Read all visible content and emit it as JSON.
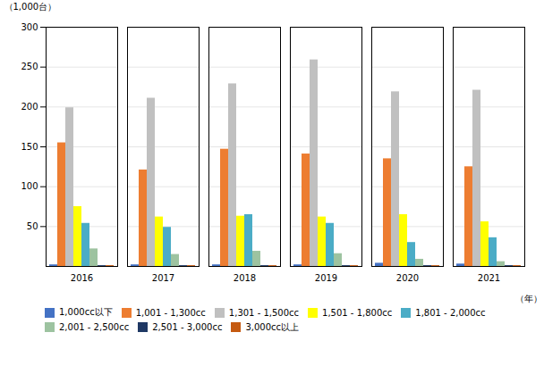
{
  "chart_data": {
    "type": "bar",
    "categories": [
      "2016",
      "2017",
      "2018",
      "2019",
      "2020",
      "2021"
    ],
    "series": [
      {
        "name": "1,000cc以下",
        "color": "#4472C4",
        "values": [
          2,
          2,
          2,
          2,
          4,
          3
        ]
      },
      {
        "name": "1,001 - 1,300cc",
        "color": "#ED7D31",
        "values": [
          155,
          121,
          147,
          141,
          135,
          125
        ]
      },
      {
        "name": "1,301 - 1,500cc",
        "color": "#C0C0C0",
        "values": [
          199,
          211,
          229,
          259,
          219,
          221
        ]
      },
      {
        "name": "1,501 - 1,800cc",
        "color": "#FFFF00",
        "values": [
          75,
          62,
          63,
          62,
          65,
          56
        ]
      },
      {
        "name": "1,801 - 2,000cc",
        "color": "#4BACC6",
        "values": [
          54,
          49,
          65,
          54,
          30,
          36
        ]
      },
      {
        "name": "2,001 - 2,500cc",
        "color": "#9DC3A0",
        "values": [
          22,
          15,
          19,
          16,
          9,
          6
        ]
      },
      {
        "name": "2,501 - 3,000cc",
        "color": "#1F3864",
        "values": [
          1,
          1,
          1,
          1,
          1,
          1
        ]
      },
      {
        "name": "3,000cc以上",
        "color": "#C55A11",
        "values": [
          1,
          1,
          1,
          1,
          1,
          1
        ]
      }
    ],
    "ylabel": "（1,000台）",
    "xlabel": "（年）",
    "ylim": [
      0,
      300
    ],
    "yticks": [
      50,
      100,
      150,
      200,
      250,
      300
    ],
    "grid": true,
    "legend": "bottom"
  }
}
